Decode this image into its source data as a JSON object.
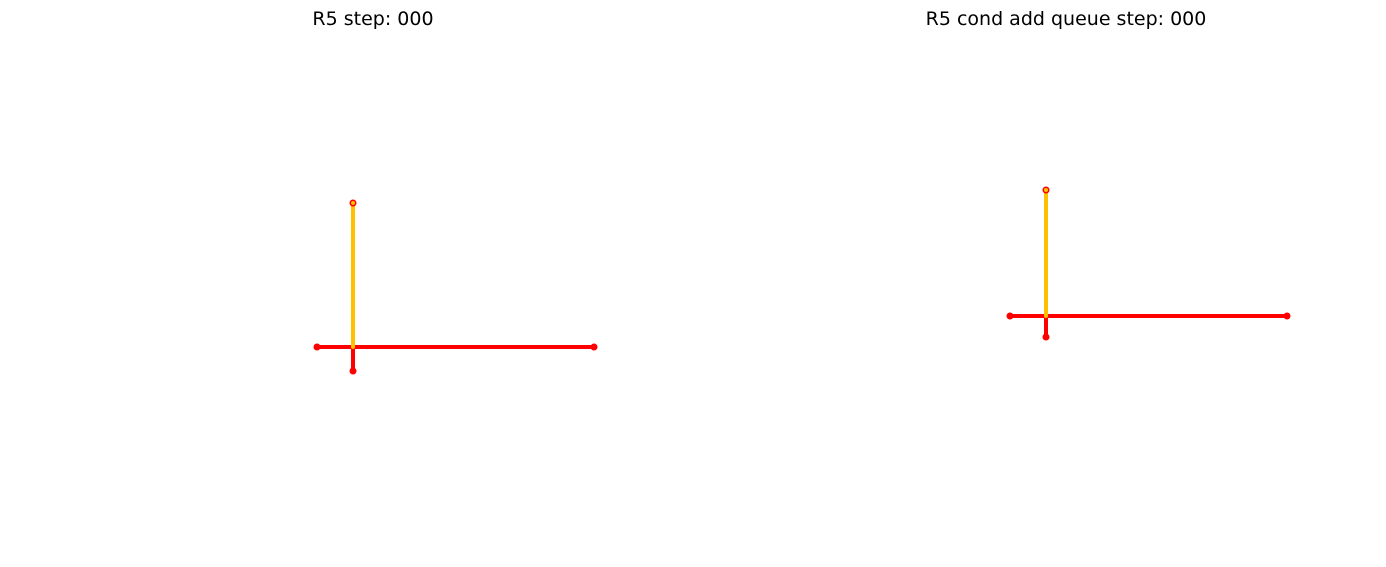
{
  "figure": {
    "background": "#ffffff"
  },
  "panels": [
    {
      "title": "R5 step: 000",
      "colors": {
        "segment": "#ff0000",
        "highlight": "#ffc000",
        "node": "#ff0000"
      }
    },
    {
      "title": "R5 cond add queue step: 000",
      "colors": {
        "segment": "#ff0000",
        "highlight": "#ffc000",
        "node": "#ff0000"
      }
    }
  ]
}
